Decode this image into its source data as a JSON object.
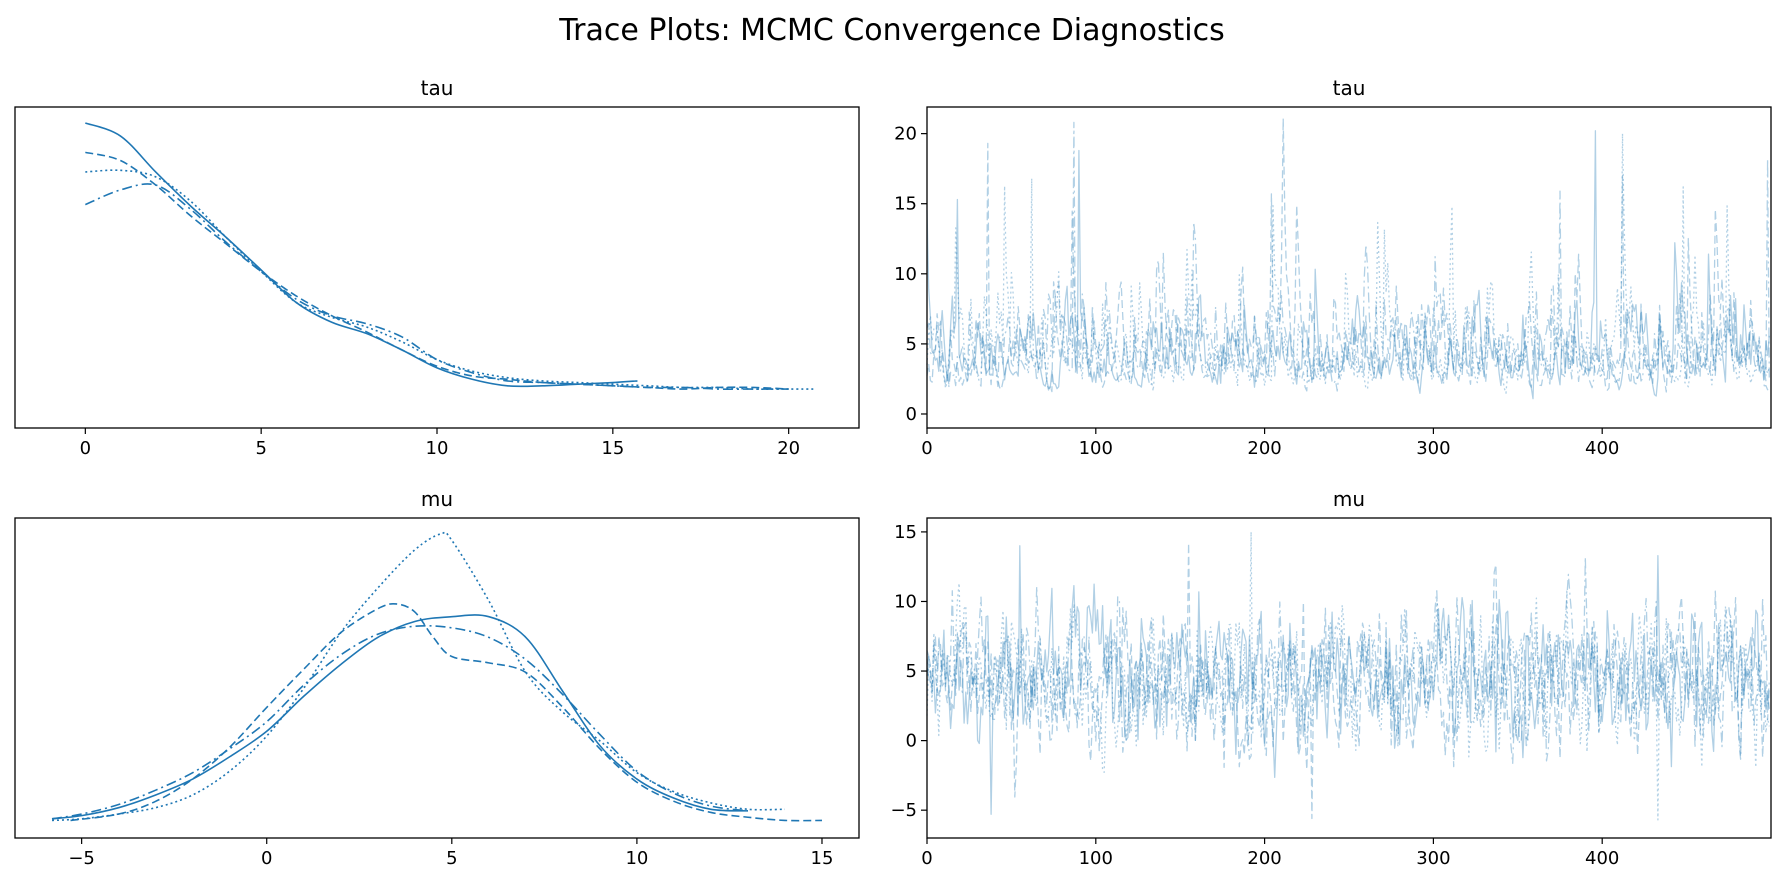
{
  "figure": {
    "suptitle": "Trace Plots: MCMC Convergence Diagnostics",
    "line_color": "#1f77b4"
  },
  "chart_data": [
    {
      "type": "line",
      "kind": "density",
      "title": "tau",
      "xlabel": "",
      "ylabel": "",
      "xlim": [
        -2,
        22
      ],
      "x_ticks": [
        0,
        5,
        10,
        15,
        20
      ],
      "y_ticks_shown": false,
      "series": [
        {
          "style": "solid",
          "x": [
            0,
            1,
            2,
            3,
            4,
            5,
            6,
            7,
            8,
            9,
            10,
            11,
            12,
            13,
            14,
            15,
            15.7
          ],
          "y": [
            0.178,
            0.17,
            0.148,
            0.127,
            0.108,
            0.088,
            0.068,
            0.056,
            0.049,
            0.039,
            0.028,
            0.021,
            0.017,
            0.017,
            0.018,
            0.019,
            0.02
          ]
        },
        {
          "style": "dashed",
          "x": [
            0,
            1,
            2,
            3,
            4,
            5,
            6,
            7,
            8,
            9,
            10,
            11,
            12,
            13,
            14,
            15,
            16,
            17,
            18,
            19,
            20
          ],
          "y": [
            0.16,
            0.155,
            0.14,
            0.121,
            0.104,
            0.087,
            0.072,
            0.06,
            0.05,
            0.039,
            0.029,
            0.023,
            0.021,
            0.019,
            0.018,
            0.017,
            0.016,
            0.015,
            0.016,
            0.016,
            0.015
          ]
        },
        {
          "style": "dotted",
          "x": [
            0,
            1,
            2,
            3,
            4,
            5,
            6,
            7,
            8,
            9,
            10,
            11,
            12,
            13,
            14,
            15,
            16,
            17,
            18,
            19,
            20,
            20.7
          ],
          "y": [
            0.148,
            0.149,
            0.145,
            0.13,
            0.108,
            0.087,
            0.068,
            0.059,
            0.053,
            0.044,
            0.033,
            0.026,
            0.022,
            0.02,
            0.019,
            0.018,
            0.017,
            0.016,
            0.016,
            0.015,
            0.015,
            0.015
          ]
        },
        {
          "style": "dashdot",
          "x": [
            0,
            1,
            2,
            3,
            4,
            5,
            6,
            7,
            8,
            9,
            10,
            11,
            12,
            13,
            14,
            15,
            16,
            17,
            18,
            19,
            20
          ],
          "y": [
            0.128,
            0.137,
            0.14,
            0.125,
            0.105,
            0.087,
            0.07,
            0.06,
            0.055,
            0.047,
            0.033,
            0.025,
            0.02,
            0.019,
            0.018,
            0.017,
            0.016,
            0.016,
            0.015,
            0.015,
            0.015
          ]
        }
      ]
    },
    {
      "type": "line",
      "kind": "trace",
      "title": "tau",
      "xlabel": "",
      "ylabel": "",
      "xlim": [
        0,
        500
      ],
      "ylim": [
        -1,
        21.9
      ],
      "x_ticks": [
        0,
        100,
        200,
        300,
        400
      ],
      "y_ticks": [
        0,
        5,
        10,
        15,
        20
      ],
      "draws_per_chain": 500,
      "chains": 4,
      "line_styles": [
        "solid",
        "dashed",
        "dotted",
        "dashdot"
      ],
      "alpha": 0.35,
      "summary": {
        "typical_min": 0,
        "typical_max": 10,
        "typical_center": 3.5,
        "max_observed": 20.8
      },
      "notable_peaks": [
        {
          "x": 18,
          "y": 15.3
        },
        {
          "x": 36,
          "y": 19.3
        },
        {
          "x": 62,
          "y": 16.8
        },
        {
          "x": 87,
          "y": 20.8
        },
        {
          "x": 90,
          "y": 18.8
        },
        {
          "x": 204,
          "y": 15.7
        },
        {
          "x": 311,
          "y": 14.8
        },
        {
          "x": 375,
          "y": 15.9
        },
        {
          "x": 396,
          "y": 20.2
        },
        {
          "x": 412,
          "y": 17
        },
        {
          "x": 448,
          "y": 16.2
        },
        {
          "x": 498,
          "y": 18.2
        }
      ]
    },
    {
      "type": "line",
      "kind": "density",
      "title": "mu",
      "xlabel": "",
      "ylabel": "",
      "xlim": [
        -6.8,
        16
      ],
      "x_ticks": [
        -5,
        0,
        5,
        10,
        15
      ],
      "y_ticks_shown": false,
      "series": [
        {
          "style": "solid",
          "x": [
            -5.8,
            -5,
            -4,
            -3,
            -2,
            -1,
            0,
            1,
            2,
            3,
            4,
            5,
            6,
            7,
            8,
            9,
            10,
            11,
            12,
            13
          ],
          "y": [
            0.003,
            0.005,
            0.01,
            0.018,
            0.028,
            0.042,
            0.058,
            0.08,
            0.1,
            0.117,
            0.127,
            0.13,
            0.13,
            0.117,
            0.083,
            0.049,
            0.028,
            0.016,
            0.009,
            0.008
          ]
        },
        {
          "style": "dashed",
          "x": [
            -5.3,
            -4,
            -3,
            -2,
            -1,
            0,
            1,
            2,
            3,
            3.5,
            4,
            4.5,
            5,
            6,
            7,
            8,
            9,
            10,
            11,
            12,
            13,
            14,
            15
          ],
          "y": [
            0.002,
            0.006,
            0.014,
            0.028,
            0.048,
            0.073,
            0.097,
            0.12,
            0.135,
            0.138,
            0.133,
            0.117,
            0.105,
            0.101,
            0.095,
            0.073,
            0.047,
            0.026,
            0.014,
            0.007,
            0.004,
            0.002,
            0.002
          ]
        },
        {
          "style": "dotted",
          "x": [
            -5.8,
            -5,
            -4,
            -3,
            -2,
            -1,
            0,
            1,
            2,
            3,
            4,
            4.7,
            5,
            6,
            7,
            8,
            9,
            10,
            11,
            12,
            13,
            14
          ],
          "y": [
            0.002,
            0.003,
            0.006,
            0.01,
            0.018,
            0.033,
            0.055,
            0.085,
            0.12,
            0.148,
            0.172,
            0.182,
            0.178,
            0.14,
            0.095,
            0.07,
            0.052,
            0.032,
            0.02,
            0.013,
            0.009,
            0.009
          ]
        },
        {
          "style": "dashdot",
          "x": [
            -5.8,
            -5,
            -4,
            -3,
            -2,
            -1,
            0,
            1,
            2,
            3,
            4,
            5,
            6,
            7,
            8,
            9,
            10,
            11,
            12,
            13
          ],
          "y": [
            0.003,
            0.006,
            0.012,
            0.021,
            0.032,
            0.047,
            0.064,
            0.087,
            0.106,
            0.119,
            0.124,
            0.123,
            0.117,
            0.103,
            0.081,
            0.056,
            0.033,
            0.019,
            0.011,
            0.008
          ]
        }
      ]
    },
    {
      "type": "line",
      "kind": "trace",
      "title": "mu",
      "xlabel": "",
      "ylabel": "",
      "xlim": [
        0,
        500
      ],
      "ylim": [
        -7,
        16
      ],
      "x_ticks": [
        0,
        100,
        200,
        300,
        400
      ],
      "y_ticks": [
        -5,
        0,
        5,
        10,
        15
      ],
      "draws_per_chain": 500,
      "chains": 4,
      "line_styles": [
        "solid",
        "dashed",
        "dotted",
        "dashdot"
      ],
      "alpha": 0.35,
      "summary": {
        "typical_min": -3,
        "typical_max": 12,
        "typical_center": 4.5,
        "max_observed": 15,
        "min_observed": -5.7
      },
      "notable_peaks": [
        {
          "x": 55,
          "y": 14
        },
        {
          "x": 155,
          "y": 14.2
        },
        {
          "x": 192,
          "y": 15
        },
        {
          "x": 390,
          "y": 13.2
        },
        {
          "x": 433,
          "y": 13.3
        }
      ],
      "notable_troughs": [
        {
          "x": 38,
          "y": -5.3
        },
        {
          "x": 228,
          "y": -5.6
        },
        {
          "x": 433,
          "y": -5.7
        }
      ]
    }
  ]
}
